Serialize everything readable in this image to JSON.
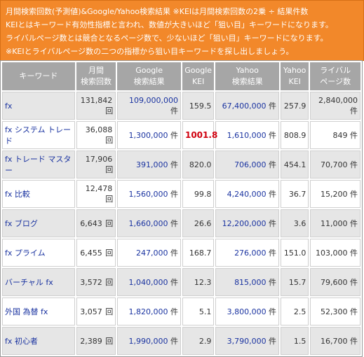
{
  "banner": {
    "line1": "月間検索回数(予測値)&Google/Yahoo検索結果 ※KEIは月間検索回数の2乗 ÷ 結果件数",
    "line2": "KEIとはキーワード有効性指標と言われ、数値が大きいほど「狙い目」キーワードになります。",
    "line3": "ライバルページ数とは競合となるページ数で、少ないほど「狙い目」キーワードになります。",
    "line4": "※KEIとライバルページ数の二つの指標から狙い目キーワードを探し出しましょう。"
  },
  "headers": {
    "keyword": "キーワード",
    "volume_1": "月間",
    "volume_2": "検索回数",
    "google_1": "Google",
    "google_2": "検索結果",
    "gkei_1": "Google",
    "gkei_2": "KEI",
    "yahoo_1": "Yahoo",
    "yahoo_2": "検索結果",
    "ykei_1": "Yahoo",
    "ykei_2": "KEI",
    "rival_1": "ライバル",
    "rival_2": "ページ数"
  },
  "units": {
    "count": "回",
    "ken": "件"
  },
  "rows": [
    {
      "keyword": "fx",
      "volume": "131,842",
      "google": "109,000,000",
      "gkei": "159.5",
      "yahoo": "67,400,000",
      "ykei": "257.9",
      "rival": "2,840,000"
    },
    {
      "keyword": "fx システム トレード",
      "volume": "36,088",
      "google": "1,300,000",
      "gkei": "1001.8",
      "yahoo": "1,610,000",
      "ykei": "808.9",
      "rival": "849"
    },
    {
      "keyword": "fx トレード マスター",
      "volume": "17,906",
      "google": "391,000",
      "gkei": "820.0",
      "yahoo": "706,000",
      "ykei": "454.1",
      "rival": "70,700"
    },
    {
      "keyword": "fx 比較",
      "volume": "12,478",
      "google": "1,560,000",
      "gkei": "99.8",
      "yahoo": "4,240,000",
      "ykei": "36.7",
      "rival": "15,200"
    },
    {
      "keyword": "fx ブログ",
      "volume": "6,643",
      "google": "1,660,000",
      "gkei": "26.6",
      "yahoo": "12,200,000",
      "ykei": "3.6",
      "rival": "11,000"
    },
    {
      "keyword": "fx プライム",
      "volume": "6,455",
      "google": "247,000",
      "gkei": "168.7",
      "yahoo": "276,000",
      "ykei": "151.0",
      "rival": "103,000"
    },
    {
      "keyword": "バーチャル fx",
      "volume": "3,572",
      "google": "1,040,000",
      "gkei": "12.3",
      "yahoo": "815,000",
      "ykei": "15.7",
      "rival": "79,600"
    },
    {
      "keyword": "外国 為替 fx",
      "volume": "3,057",
      "google": "1,820,000",
      "gkei": "5.1",
      "yahoo": "3,800,000",
      "ykei": "2.5",
      "rival": "52,300"
    },
    {
      "keyword": "fx 初心者",
      "volume": "2,389",
      "google": "1,990,000",
      "gkei": "2.9",
      "yahoo": "3,790,000",
      "ykei": "1.5",
      "rival": "16,700"
    }
  ],
  "colors": {
    "banner": "#f2882a",
    "header": "#a6a6a6",
    "link": "#1a33a0",
    "highlight": "#d0000e"
  }
}
